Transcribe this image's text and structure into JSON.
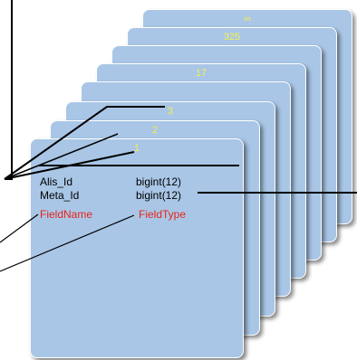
{
  "stack": {
    "back_cards": [
      {
        "label": "∞"
      },
      {
        "label": "325"
      },
      {
        "label": ""
      },
      {
        "label": "17"
      },
      {
        "label": ""
      },
      {
        "label": "3"
      },
      {
        "label": "2"
      }
    ],
    "front_card": {
      "label": "1",
      "rows": [
        {
          "name": "Alis_Id",
          "type": "bigint(12)",
          "color": "#000000"
        },
        {
          "name": "Meta_Id",
          "type": "bigint(12)",
          "color": "#000000"
        },
        {
          "name": "FieldName",
          "type": "FieldType",
          "color": "#e8241a"
        }
      ]
    }
  },
  "colors": {
    "card_fill": "#a9c6e6",
    "card_label": "#f4ee53",
    "highlight_text": "#e8241a"
  }
}
